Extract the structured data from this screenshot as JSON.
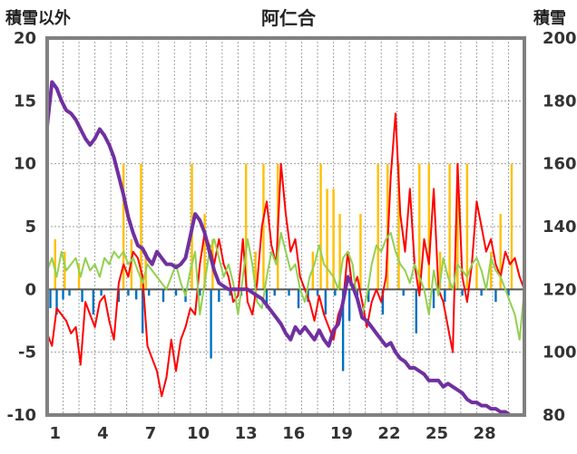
{
  "chart_data": {
    "type": "line",
    "title": "阿仁合",
    "y_left_label": "積雪以外",
    "y_right_label": "積雪",
    "ylim_left": [
      -10,
      20
    ],
    "ylim_right": [
      80,
      200
    ],
    "y_left_ticks": [
      "20",
      "15",
      "10",
      "5",
      "0",
      "-5",
      "-10"
    ],
    "y_right_ticks": [
      "200",
      "180",
      "160",
      "140",
      "120",
      "100",
      "80"
    ],
    "x_range": [
      0,
      30
    ],
    "x_ticks": [
      "1",
      "4",
      "7",
      "10",
      "13",
      "16",
      "19",
      "22",
      "25",
      "28"
    ],
    "grid": true,
    "series": [
      {
        "color": "#ffc000",
        "kind": "bars",
        "x": [
          0.5,
          1.1,
          2.0,
          4.8,
          5.3,
          5.9,
          6.2,
          9.1,
          9.9,
          10.4,
          12.5,
          13.1,
          13.6,
          14.5,
          16.7,
          17.2,
          17.6,
          18.0,
          18.4,
          19.7,
          20.8,
          21.4,
          22.1,
          23.4,
          24.0,
          24.7,
          25.3,
          25.8,
          26.4,
          27.0,
          27.9,
          28.5,
          29.2
        ],
        "values": [
          4,
          3,
          2,
          10,
          4,
          10,
          3,
          10,
          6,
          4,
          10,
          3,
          10,
          10,
          3,
          10,
          8,
          8,
          6,
          6,
          10,
          10,
          10,
          10,
          10,
          3,
          10,
          10,
          10,
          2,
          3,
          6,
          10
        ]
      },
      {
        "color": "#0070c0",
        "kind": "bars",
        "x": [
          0.2,
          0.6,
          1.0,
          1.4,
          2.2,
          2.9,
          3.4,
          4.5,
          5.1,
          5.6,
          6.0,
          6.4,
          7.3,
          8.1,
          8.7,
          9.6,
          10.3,
          10.8,
          11.5,
          12.2,
          13.8,
          14.3,
          15.2,
          15.8,
          16.4,
          17.0,
          17.5,
          18.1,
          18.6,
          19.0,
          19.5,
          20.2,
          21.1,
          22.4,
          23.2,
          24.3,
          25.0,
          26.1,
          27.3,
          28.2,
          29.0
        ],
        "values": [
          -1.5,
          -2,
          -0.8,
          -0.5,
          -1,
          -2,
          -0.5,
          -1,
          -0.5,
          -0.8,
          -3.5,
          -0.5,
          -1,
          -0.5,
          -1,
          -0.5,
          -5.5,
          -1,
          -0.5,
          -0.5,
          -1.5,
          -0.5,
          -0.5,
          -1.5,
          -1,
          -0.5,
          -2,
          -0.5,
          -6.5,
          -2.5,
          -0.5,
          -1,
          -2,
          -0.5,
          -3.5,
          -1.5,
          -1,
          -0.5,
          -0.5,
          -1,
          -0.5
        ]
      },
      {
        "color": "#ff0000",
        "kind": "line",
        "x": [
          0,
          0.3,
          0.6,
          0.9,
          1.2,
          1.5,
          1.8,
          2.1,
          2.4,
          2.7,
          3.0,
          3.3,
          3.6,
          3.9,
          4.2,
          4.5,
          4.8,
          5.1,
          5.4,
          5.7,
          6.0,
          6.3,
          6.6,
          6.9,
          7.2,
          7.5,
          7.8,
          8.1,
          8.4,
          8.7,
          9.0,
          9.3,
          9.6,
          9.9,
          10.2,
          10.5,
          10.8,
          11.1,
          11.4,
          11.7,
          12.0,
          12.3,
          12.6,
          12.9,
          13.2,
          13.5,
          13.8,
          14.1,
          14.4,
          14.7,
          15.0,
          15.3,
          15.6,
          15.9,
          16.2,
          16.5,
          16.8,
          17.1,
          17.4,
          17.7,
          18.0,
          18.3,
          18.6,
          18.9,
          19.2,
          19.5,
          19.8,
          20.1,
          20.4,
          20.7,
          21.0,
          21.3,
          21.6,
          21.9,
          22.2,
          22.5,
          22.8,
          23.1,
          23.4,
          23.7,
          24.0,
          24.3,
          24.6,
          24.9,
          25.2,
          25.5,
          25.8,
          26.1,
          26.4,
          26.7,
          27.0,
          27.3,
          27.6,
          27.9,
          28.2,
          28.5,
          28.8,
          29.1,
          29.4,
          29.7,
          30.0
        ],
        "values": [
          -3.5,
          -4.5,
          -1.5,
          -2,
          -2.5,
          -3.5,
          -3,
          -6,
          -1,
          -2,
          -3,
          -1,
          -0.5,
          -2.5,
          -4,
          0.5,
          2,
          1,
          3,
          2.5,
          1,
          -4.5,
          -5.5,
          -6.5,
          -8.5,
          -7,
          -4,
          -6.5,
          -4,
          -3,
          -1.5,
          -2,
          2,
          4.5,
          3.5,
          2,
          4,
          2,
          1,
          -1,
          -0.5,
          4,
          -1,
          -2,
          0.5,
          5,
          7,
          3.5,
          2,
          10,
          6,
          3,
          4,
          1,
          0,
          -1,
          -2.5,
          -0.5,
          -2,
          -3,
          -4,
          -2,
          -1,
          3,
          0,
          1,
          -1,
          -3,
          -1,
          0,
          -1,
          1,
          9,
          14,
          6,
          3,
          8,
          2,
          -0.5,
          4,
          2,
          8,
          0,
          -1,
          -3,
          -5,
          10,
          1,
          -1,
          2,
          7,
          5,
          3,
          4,
          2,
          1,
          3,
          2,
          2.5,
          1,
          0
        ]
      },
      {
        "color": "#92d050",
        "kind": "line",
        "x": [
          0,
          0.3,
          0.6,
          0.9,
          1.2,
          1.5,
          1.8,
          2.1,
          2.4,
          2.7,
          3.0,
          3.3,
          3.6,
          3.9,
          4.2,
          4.5,
          4.8,
          5.1,
          5.4,
          5.7,
          6.0,
          6.3,
          6.6,
          6.9,
          7.2,
          7.5,
          7.8,
          8.1,
          8.4,
          8.7,
          9.0,
          9.3,
          9.6,
          9.9,
          10.2,
          10.5,
          10.8,
          11.1,
          11.4,
          11.7,
          12.0,
          12.3,
          12.6,
          12.9,
          13.2,
          13.5,
          13.8,
          14.1,
          14.4,
          14.7,
          15.0,
          15.3,
          15.6,
          15.9,
          16.2,
          16.5,
          16.8,
          17.1,
          17.4,
          17.7,
          18.0,
          18.3,
          18.6,
          18.9,
          19.2,
          19.5,
          19.8,
          20.1,
          20.4,
          20.7,
          21.0,
          21.3,
          21.6,
          21.9,
          22.2,
          22.5,
          22.8,
          23.1,
          23.4,
          23.7,
          24.0,
          24.3,
          24.6,
          24.9,
          25.2,
          25.5,
          25.8,
          26.1,
          26.4,
          26.7,
          27.0,
          27.3,
          27.6,
          27.9,
          28.2,
          28.5,
          28.8,
          29.1,
          29.4,
          29.7,
          30.0
        ],
        "values": [
          1.5,
          2.5,
          1,
          3,
          1.5,
          2,
          2.5,
          1,
          2.5,
          1.5,
          2,
          1,
          2.5,
          2,
          3,
          2.5,
          3,
          2,
          2.5,
          1.5,
          0.5,
          2,
          1.5,
          1,
          0.5,
          0,
          1,
          2,
          0.5,
          -0.5,
          1.5,
          3,
          -2,
          0.5,
          3,
          4,
          2.5,
          1,
          2,
          0.5,
          -2,
          1,
          4,
          2,
          -1,
          -1.5,
          1,
          3,
          2,
          4.5,
          3,
          1.5,
          2,
          0,
          -1,
          1,
          2,
          3.5,
          2,
          1.5,
          1,
          0,
          2.5,
          3,
          2,
          -1,
          -2,
          -0.5,
          2,
          3.5,
          3,
          4,
          4.5,
          3,
          2,
          1.5,
          0.5,
          2,
          1,
          0,
          -2,
          1.5,
          -0.5,
          2.5,
          1,
          0,
          2,
          1.5,
          1,
          2,
          2.5,
          1.5,
          0,
          2.5,
          1.5,
          1,
          0,
          -1,
          -2,
          -4,
          0
        ]
      },
      {
        "color": "#7030a0",
        "kind": "line",
        "axis": "right",
        "x": [
          0,
          0.3,
          0.6,
          0.9,
          1.2,
          1.5,
          1.8,
          2.1,
          2.4,
          2.7,
          3.0,
          3.3,
          3.6,
          3.9,
          4.2,
          4.5,
          4.8,
          5.1,
          5.4,
          5.7,
          6.0,
          6.3,
          6.6,
          6.9,
          7.2,
          7.5,
          7.8,
          8.1,
          8.4,
          8.7,
          9.0,
          9.3,
          9.6,
          9.9,
          10.2,
          10.5,
          10.8,
          11.1,
          11.4,
          11.7,
          12.0,
          12.3,
          12.6,
          12.9,
          13.2,
          13.5,
          13.8,
          14.1,
          14.4,
          14.7,
          15.0,
          15.3,
          15.6,
          15.9,
          16.2,
          16.5,
          16.8,
          17.1,
          17.4,
          17.7,
          18.0,
          18.3,
          18.6,
          18.9,
          19.2,
          19.5,
          19.8,
          20.1,
          20.4,
          20.7,
          21.0,
          21.3,
          21.6,
          21.9,
          22.2,
          22.5,
          22.8,
          23.1,
          23.4,
          23.7,
          24.0,
          24.3,
          24.6,
          24.9,
          25.2,
          25.5,
          25.8,
          26.1,
          26.4,
          26.7,
          27.0,
          27.3,
          27.6,
          27.9,
          28.2,
          28.5,
          28.8,
          29.1,
          29.4,
          29.7,
          30.0
        ],
        "values": [
          172,
          186,
          184,
          180,
          177,
          176,
          174,
          171,
          168,
          166,
          168,
          171,
          169,
          166,
          162,
          156,
          150,
          143,
          138,
          134,
          133,
          130,
          128,
          132,
          130,
          128,
          128,
          127,
          128,
          130,
          137,
          144,
          142,
          138,
          132,
          126,
          122,
          121,
          120,
          120,
          120,
          120,
          120,
          119,
          118,
          117,
          115,
          113,
          111,
          109,
          106,
          104,
          108,
          106,
          108,
          106,
          104,
          107,
          104,
          102,
          107,
          109,
          116,
          124,
          121,
          117,
          111,
          110,
          108,
          106,
          104,
          102,
          103,
          100,
          98,
          97,
          95,
          95,
          94,
          93,
          91,
          91,
          91,
          89,
          90,
          89,
          88,
          87,
          85,
          84,
          84,
          83,
          83,
          82,
          82,
          81,
          81,
          80,
          80,
          80,
          80
        ]
      }
    ]
  }
}
